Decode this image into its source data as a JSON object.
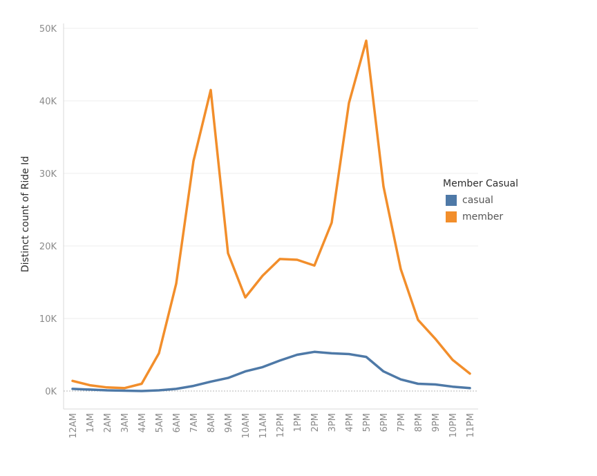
{
  "chart_data": {
    "type": "line",
    "title": "",
    "xlabel": "",
    "ylabel": "Distinct count of Ride Id",
    "categories": [
      "12AM",
      "1AM",
      "2AM",
      "3AM",
      "4AM",
      "5AM",
      "6AM",
      "7AM",
      "8AM",
      "9AM",
      "10AM",
      "11AM",
      "12PM",
      "1PM",
      "2PM",
      "3PM",
      "4PM",
      "5PM",
      "6PM",
      "7PM",
      "8PM",
      "9PM",
      "10PM",
      "11PM"
    ],
    "ylim": [
      0,
      50000
    ],
    "yticks": [
      0,
      10000,
      20000,
      30000,
      40000,
      50000
    ],
    "ytick_labels": [
      "0K",
      "10K",
      "20K",
      "30K",
      "40K",
      "50K"
    ],
    "grid": true,
    "legend": {
      "title": "Member Casual",
      "placement": "right"
    },
    "series": [
      {
        "name": "casual",
        "color": "#4e79a7",
        "values": [
          300,
          200,
          100,
          50,
          0,
          100,
          300,
          700,
          1300,
          1800,
          2700,
          3300,
          4200,
          5000,
          5400,
          5200,
          5100,
          4700,
          2700,
          1600,
          1000,
          900,
          600,
          400
        ]
      },
      {
        "name": "member",
        "color": "#f28e2b",
        "values": [
          1400,
          800,
          500,
          400,
          1000,
          5200,
          14800,
          31700,
          41500,
          19000,
          12900,
          15900,
          18200,
          18100,
          17300,
          23200,
          39700,
          48300,
          28200,
          16800,
          9800,
          7200,
          4300,
          2400
        ]
      }
    ]
  }
}
